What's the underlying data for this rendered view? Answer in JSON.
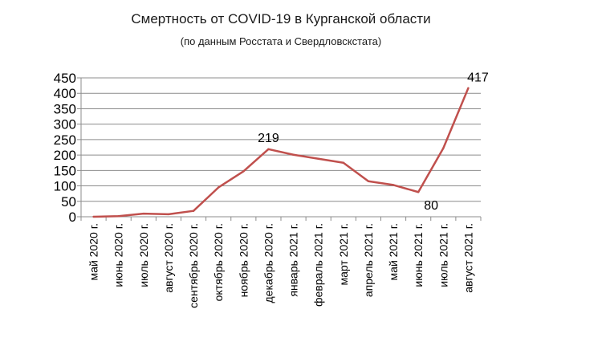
{
  "chart_data": {
    "type": "line",
    "title": "Смертность от COVID-19 в Курганской области",
    "subtitle": "(по данным Росстата и Свердловскстата)",
    "categories": [
      "май 2020 г.",
      "июнь 2020 г.",
      "июль 2020 г.",
      "август 2020 г.",
      "сентябрь 2020 г.",
      "октябрь 2020 г.",
      "ноябрь 2020 г.",
      "декабрь 2020 г.",
      "январь 2021 г.",
      "февраль 2021 г.",
      "март 2021 г.",
      "апрель 2021 г.",
      "май 2021 г.",
      "июнь 2021 г.",
      "июль 2021 г.",
      "август 2021 г."
    ],
    "values": [
      0,
      2,
      10,
      8,
      19,
      95,
      147,
      219,
      201,
      188,
      175,
      115,
      103,
      80,
      222,
      417
    ],
    "data_labels": [
      {
        "index": 7,
        "text": "219"
      },
      {
        "index": 13,
        "text": "80"
      },
      {
        "index": 15,
        "text": "417"
      }
    ],
    "ylim": [
      0,
      450
    ],
    "yticks": [
      0,
      50,
      100,
      150,
      200,
      250,
      300,
      350,
      400,
      450
    ],
    "grid": true,
    "line_color": "#c0504d",
    "grid_color": "#8c8c8c"
  }
}
